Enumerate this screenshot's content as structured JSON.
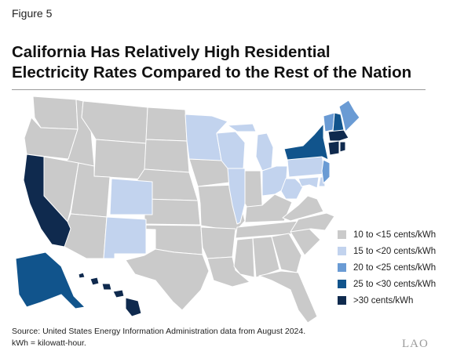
{
  "figure_label": "Figure 5",
  "title_line1": "California Has Relatively High Residential",
  "title_line2": "Electricity Rates Compared to the Rest of the Nation",
  "legend": [
    {
      "label": "10 to <15 cents/kWh",
      "color": "#cacaca"
    },
    {
      "label": "15 to <20 cents/kWh",
      "color": "#c2d3ee"
    },
    {
      "label": "20 to <25 cents/kWh",
      "color": "#6a9bd4"
    },
    {
      "label": "25 to <30 cents/kWh",
      "color": "#11548c"
    },
    {
      "label": ">30 cents/kWh",
      "color": "#0f2a4e"
    }
  ],
  "state_rate_class": {
    "California": ">30 cents/kWh",
    "Hawaii": ">30 cents/kWh",
    "Connecticut": ">30 cents/kWh",
    "Massachusetts": ">30 cents/kWh",
    "Rhode Island": ">30 cents/kWh",
    "Alaska": "25 to <30 cents/kWh",
    "New York": "25 to <30 cents/kWh",
    "New Hampshire": "25 to <30 cents/kWh",
    "Vermont": "20 to <25 cents/kWh",
    "Maine": "20 to <25 cents/kWh",
    "New Jersey": "20 to <25 cents/kWh",
    "Minnesota": "15 to <20 cents/kWh",
    "Wisconsin": "15 to <20 cents/kWh",
    "Michigan": "15 to <20 cents/kWh",
    "Illinois": "15 to <20 cents/kWh",
    "Ohio": "15 to <20 cents/kWh",
    "Pennsylvania": "15 to <20 cents/kWh",
    "Colorado": "15 to <20 cents/kWh",
    "New Mexico": "15 to <20 cents/kWh",
    "Maryland": "15 to <20 cents/kWh",
    "Delaware": "15 to <20 cents/kWh",
    "West Virginia": "15 to <20 cents/kWh"
  },
  "source_line1": "Source: United States Energy Information Administration data from August 2024.",
  "source_line2": "kWh = kilowatt-hour.",
  "logo_text": "LAO"
}
